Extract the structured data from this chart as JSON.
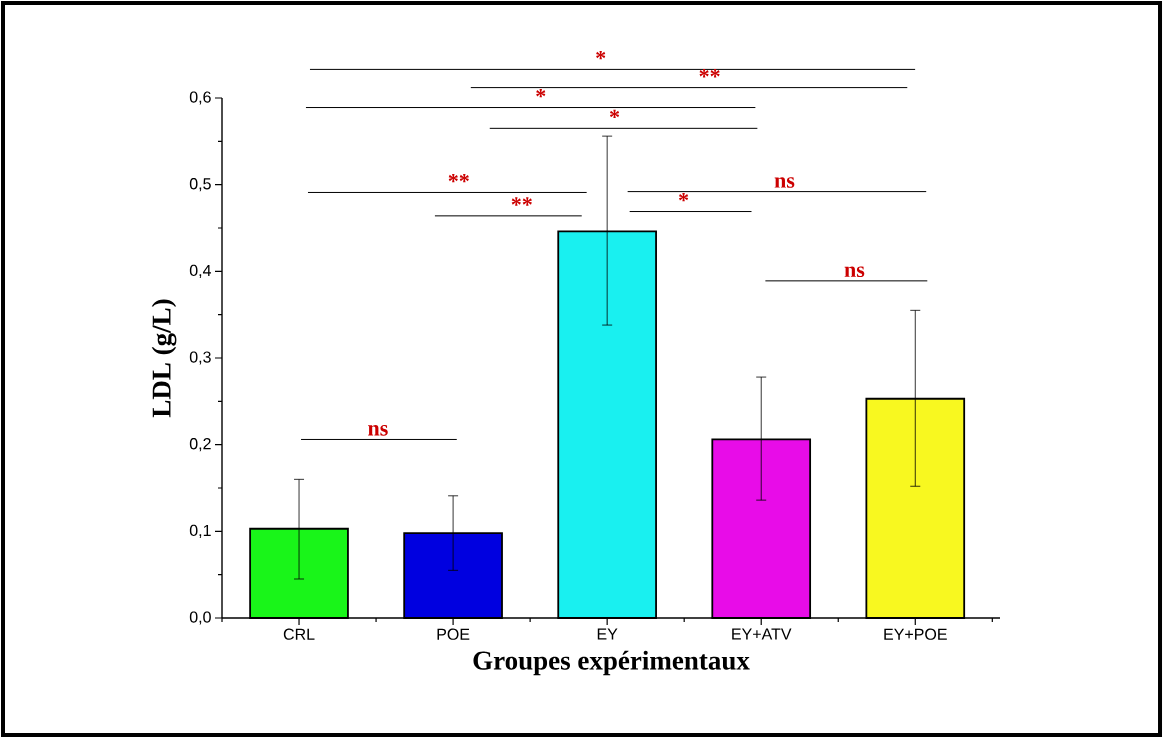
{
  "chart_data": {
    "type": "bar",
    "xlabel": "Groupes expérimentaux",
    "ylabel": "LDL (g/L)",
    "categories": [
      "CRL",
      "POE",
      "EY",
      "EY+ATV",
      "EY+POE"
    ],
    "values": [
      0.103,
      0.098,
      0.446,
      0.206,
      0.253
    ],
    "errors": [
      [
        0.045,
        0.16
      ],
      [
        0.055,
        0.141
      ],
      [
        0.338,
        0.556
      ],
      [
        0.136,
        0.278
      ],
      [
        0.152,
        0.355
      ]
    ],
    "colors": [
      "#19f519",
      "#0000e0",
      "#19f0f0",
      "#e80ce8",
      "#f8f820"
    ],
    "ylim": [
      0,
      0.6
    ],
    "yticks": [
      {
        "value": 0,
        "label": "0,0"
      },
      {
        "value": 0.1,
        "label": "0,1"
      },
      {
        "value": 0.2,
        "label": "0,2"
      },
      {
        "value": 0.3,
        "label": "0,3"
      },
      {
        "value": 0.4,
        "label": "0,4"
      },
      {
        "value": 0.5,
        "label": "0,5"
      },
      {
        "value": 0.6,
        "label": "0,6"
      }
    ],
    "annotations": [
      "*",
      "**",
      "*",
      "*",
      "**",
      "**",
      "ns",
      "*",
      "ns",
      "ns"
    ]
  }
}
